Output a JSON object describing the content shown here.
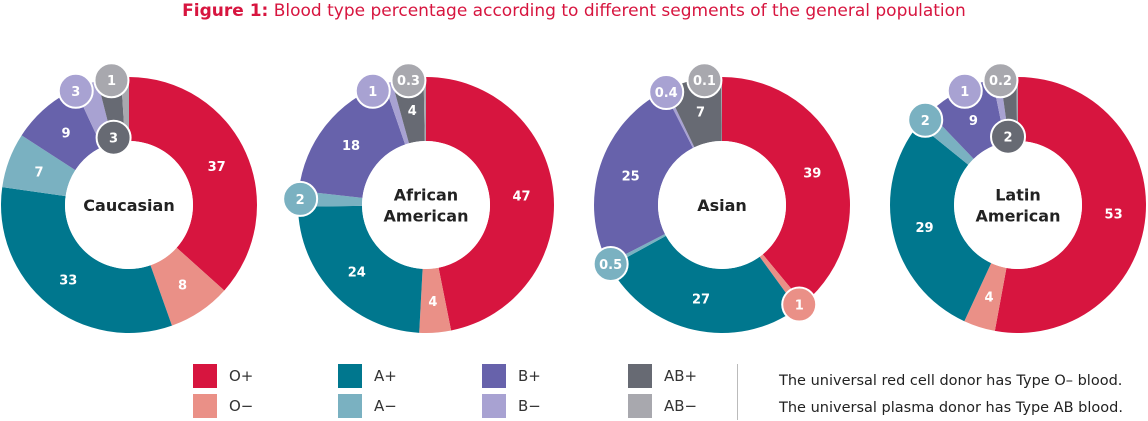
{
  "title": {
    "prefix": "Figure 1:",
    "text": " Blood type percentage according to different segments of the general population"
  },
  "colors": {
    "O+": "#d7153f",
    "O−": "#ea9087",
    "A+": "#00778e",
    "A−": "#7ab1c1",
    "B+": "#6762ab",
    "B−": "#a8a2d2",
    "AB+": "#676a73",
    "AB−": "#a8a8ae"
  },
  "legend": [
    {
      "label": "O+",
      "key": "O+"
    },
    {
      "label": "O−",
      "key": "O−"
    },
    {
      "label": "A+",
      "key": "A+"
    },
    {
      "label": "A−",
      "key": "A−"
    },
    {
      "label": "B+",
      "key": "B+"
    },
    {
      "label": "B−",
      "key": "B−"
    },
    {
      "label": "AB+",
      "key": "AB+"
    },
    {
      "label": "AB−",
      "key": "AB−"
    }
  ],
  "notes": [
    "The universal red cell donor has Type O– blood.",
    "The universal plasma donor has Type AB blood."
  ],
  "chart_data": [
    {
      "type": "pie",
      "title": [
        "Caucasian"
      ],
      "categories": [
        "O+",
        "O−",
        "A+",
        "A−",
        "B+",
        "B−",
        "AB+",
        "AB−"
      ],
      "values": [
        37,
        8,
        33,
        7,
        9,
        3,
        3,
        1
      ],
      "labels": [
        "37",
        "8",
        "33",
        "7",
        "9",
        "3",
        "3",
        "1"
      ],
      "callout": [
        "none",
        "none",
        "none",
        "none",
        "none",
        "outer",
        "inner",
        "outer"
      ]
    },
    {
      "type": "pie",
      "title": [
        "African",
        "American"
      ],
      "categories": [
        "O+",
        "O−",
        "A+",
        "A−",
        "B+",
        "B−",
        "AB+",
        "AB−"
      ],
      "values": [
        47,
        4,
        24,
        2,
        18,
        1,
        4,
        0.3
      ],
      "labels": [
        "47",
        "4",
        "24",
        "2",
        "18",
        "1",
        "4",
        "0.3"
      ],
      "callout": [
        "none",
        "none",
        "none",
        "outer",
        "none",
        "outer",
        "none",
        "outer"
      ]
    },
    {
      "type": "pie",
      "title": [
        "Asian"
      ],
      "categories": [
        "O+",
        "O−",
        "A+",
        "A−",
        "B+",
        "B−",
        "AB+",
        "AB−"
      ],
      "values": [
        39,
        1,
        27,
        0.5,
        25,
        0.4,
        7,
        0.1
      ],
      "labels": [
        "39",
        "1",
        "27",
        "0.5",
        "25",
        "0.4",
        "7",
        "0.1"
      ],
      "callout": [
        "none",
        "outer",
        "none",
        "outer",
        "none",
        "outer",
        "none",
        "outer"
      ]
    },
    {
      "type": "pie",
      "title": [
        "Latin",
        "American"
      ],
      "categories": [
        "O+",
        "O−",
        "A+",
        "A−",
        "B+",
        "B−",
        "AB+",
        "AB−"
      ],
      "values": [
        53,
        4,
        29,
        2,
        9,
        1,
        2,
        0.2
      ],
      "labels": [
        "53",
        "4",
        "29",
        "2",
        "9",
        "1",
        "2",
        "0.2"
      ],
      "callout": [
        "none",
        "none",
        "none",
        "outer",
        "none",
        "outer",
        "inner",
        "outer"
      ]
    }
  ]
}
